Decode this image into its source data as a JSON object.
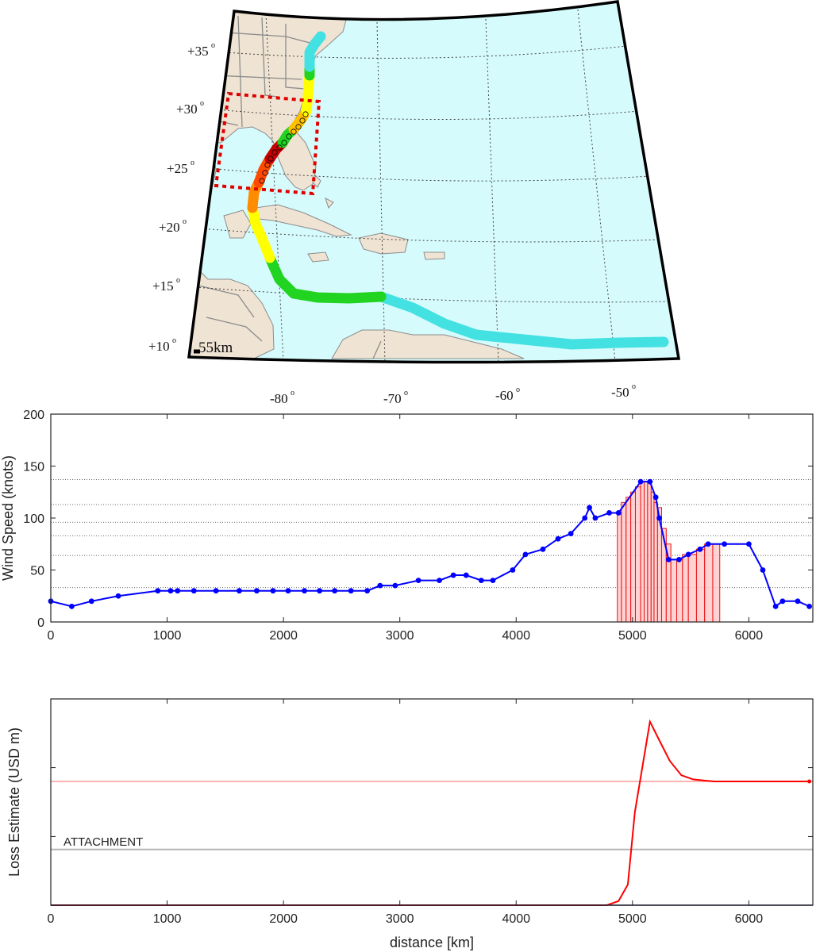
{
  "map": {
    "lat_labels": [
      {
        "text": "+35",
        "deg": "o"
      },
      {
        "text": "+30",
        "deg": "o"
      },
      {
        "text": "+25",
        "deg": "o"
      },
      {
        "text": "+20",
        "deg": "o"
      },
      {
        "text": "+15",
        "deg": "o"
      },
      {
        "text": "+10",
        "deg": "o"
      }
    ],
    "lon_labels": [
      {
        "text": "-80",
        "deg": "o"
      },
      {
        "text": "-70",
        "deg": "o"
      },
      {
        "text": "-60",
        "deg": "o"
      },
      {
        "text": "-50",
        "deg": "o"
      }
    ],
    "scale_label": "55km",
    "colors": {
      "ocean": "#d6fbfc",
      "land": "#efe3d3",
      "border": "#8c8c8c",
      "frame": "#000000",
      "box": "#e00000"
    },
    "track_segments": [
      {
        "category": "tropical-depression",
        "color": "#44e1e3"
      },
      {
        "category": "tropical-storm",
        "color": "#22d422"
      },
      {
        "category": "cat-1",
        "color": "#ffff00"
      },
      {
        "category": "cat-2",
        "color": "#ffc000"
      },
      {
        "category": "cat-3",
        "color": "#ff8c00"
      },
      {
        "category": "cat-4",
        "color": "#ff4a00"
      },
      {
        "category": "cat-5",
        "color": "#c80000"
      }
    ]
  },
  "chart_data": [
    {
      "type": "line",
      "ylabel": "Wind Speed (knots)",
      "xlabel": "",
      "xlim": [
        0,
        6550
      ],
      "ylim": [
        0,
        200
      ],
      "xticks": [
        0,
        1000,
        2000,
        3000,
        4000,
        5000,
        6000
      ],
      "yticks": [
        0,
        50,
        100,
        150,
        200
      ],
      "reference_lines": [
        33,
        64,
        83,
        96,
        113,
        137
      ],
      "series": [
        {
          "color": "#0000ff",
          "x": [
            0,
            180,
            350,
            580,
            920,
            1030,
            1090,
            1230,
            1420,
            1620,
            1770,
            1910,
            2040,
            2180,
            2310,
            2440,
            2580,
            2720,
            2830,
            2960,
            3160,
            3340,
            3460,
            3570,
            3700,
            3800,
            3970,
            4080,
            4230,
            4360,
            4470,
            4590,
            4630,
            4680,
            4800,
            4880,
            5070,
            5150,
            5200,
            5230,
            5310,
            5400,
            5480,
            5580,
            5650,
            5790,
            6000,
            6120,
            6230,
            6290,
            6420,
            6520
          ],
          "y": [
            20,
            15,
            20,
            25,
            30,
            30,
            30,
            30,
            30,
            30,
            30,
            30,
            30,
            30,
            30,
            30,
            30,
            30,
            35,
            35,
            40,
            40,
            45,
            45,
            40,
            40,
            50,
            65,
            70,
            80,
            85,
            100,
            110,
            100,
            105,
            105,
            135,
            135,
            120,
            100,
            60,
            60,
            65,
            70,
            75,
            75,
            75,
            50,
            15,
            20,
            20,
            15
          ]
        }
      ],
      "bars": {
        "color": "#e11",
        "fill": "#ffc8c8",
        "items": [
          {
            "x0": 4870,
            "x1": 4905,
            "y": 105
          },
          {
            "x0": 4905,
            "x1": 4945,
            "y": 115
          },
          {
            "x0": 4945,
            "x1": 4985,
            "y": 120
          },
          {
            "x0": 4985,
            "x1": 5025,
            "y": 125
          },
          {
            "x0": 5025,
            "x1": 5070,
            "y": 130
          },
          {
            "x0": 5070,
            "x1": 5100,
            "y": 135
          },
          {
            "x0": 5100,
            "x1": 5130,
            "y": 135
          },
          {
            "x0": 5130,
            "x1": 5160,
            "y": 135
          },
          {
            "x0": 5160,
            "x1": 5185,
            "y": 125
          },
          {
            "x0": 5185,
            "x1": 5215,
            "y": 115
          },
          {
            "x0": 5215,
            "x1": 5250,
            "y": 110
          },
          {
            "x0": 5250,
            "x1": 5290,
            "y": 90
          },
          {
            "x0": 5290,
            "x1": 5330,
            "y": 75
          },
          {
            "x0": 5330,
            "x1": 5380,
            "y": 60
          },
          {
            "x0": 5380,
            "x1": 5430,
            "y": 60
          },
          {
            "x0": 5430,
            "x1": 5480,
            "y": 65
          },
          {
            "x0": 5480,
            "x1": 5550,
            "y": 65
          },
          {
            "x0": 5550,
            "x1": 5620,
            "y": 70
          },
          {
            "x0": 5620,
            "x1": 5690,
            "y": 75
          },
          {
            "x0": 5690,
            "x1": 5750,
            "y": 75
          }
        ]
      }
    },
    {
      "type": "line",
      "ylabel": "Loss Estimate (USD m)",
      "xlabel": "distance [km]",
      "xlim": [
        0,
        6550
      ],
      "ylim": [
        0,
        1
      ],
      "xticks": [
        0,
        1000,
        2000,
        3000,
        4000,
        5000,
        6000
      ],
      "ytick_positions": [
        0.333,
        0.667
      ],
      "attachment_label": "ATTACHMENT",
      "attachment_level": 0.27,
      "pink_level": 0.6,
      "series": [
        {
          "color": "#ff0000",
          "x": [
            0,
            4780,
            4880,
            4960,
            5020,
            5150,
            5230,
            5320,
            5420,
            5520,
            5700,
            6000,
            6300,
            6520
          ],
          "y": [
            0,
            0,
            0.02,
            0.1,
            0.45,
            0.89,
            0.8,
            0.7,
            0.63,
            0.61,
            0.6,
            0.6,
            0.6,
            0.6
          ]
        }
      ]
    }
  ]
}
